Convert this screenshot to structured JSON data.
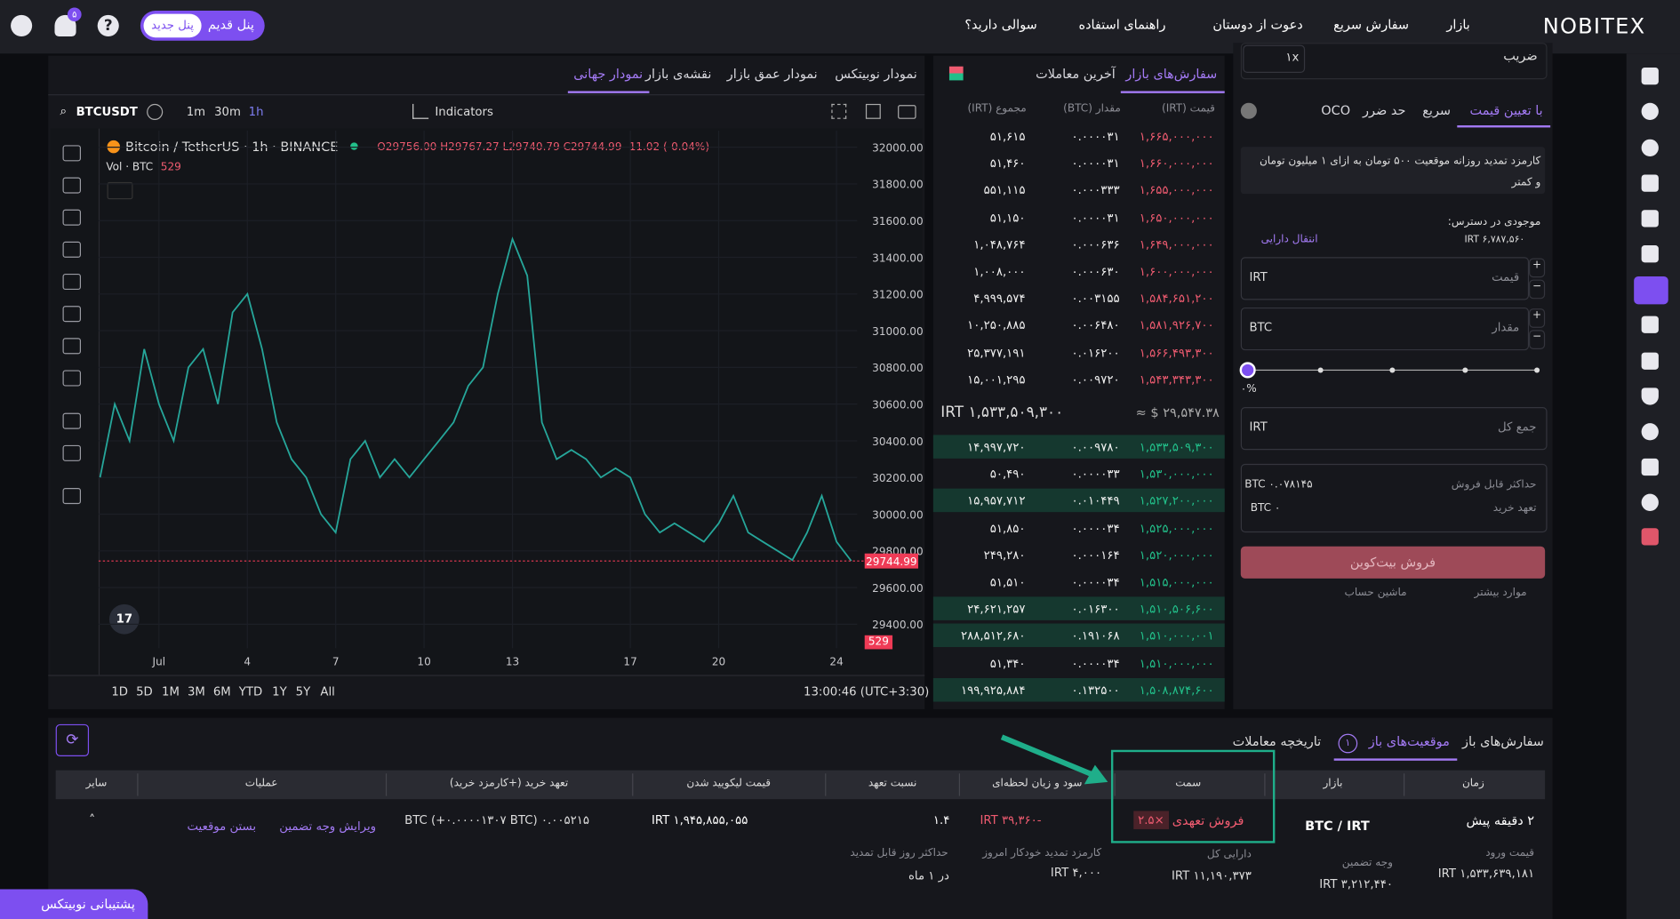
{
  "nav": {
    "logo": "NOBITEX",
    "links": [
      "بازار",
      "سفارش سریع",
      "دعوت از دوستان",
      "راهنمای استفاده",
      "سوالی دارید؟"
    ],
    "panel_old": "پنل قدیم",
    "panel_new": "پنل جدید",
    "notification_count": "۵"
  },
  "chart_tabs": [
    "نمودار جهانی",
    "نقشه‌ی بازار",
    "نمودار عمق بازار",
    "نمودار نوبیتکس"
  ],
  "toolbar": {
    "symbol": "BTCUSDT",
    "intervals": [
      "1m",
      "30m",
      "1h"
    ],
    "indicators": "Indicators"
  },
  "chart_legend": {
    "title": "Bitcoin / TetherUS · 1h · BINANCE",
    "ohlc": "O29756.00 H29767.27 L29740.79 C29744.99 -11.02 (-0.04%)",
    "volume_label": "Vol · BTC",
    "volume_value": "529"
  },
  "chart_data": {
    "type": "line",
    "x": [
      -1,
      -0.5,
      0,
      0.5,
      1,
      1.5,
      2,
      2.5,
      3,
      3.5,
      4,
      4.5,
      5,
      5.5,
      6,
      6.5,
      7,
      7.5,
      8,
      8.5,
      9,
      9.5,
      10,
      10.5,
      11,
      11.5,
      12,
      12.5,
      13,
      13.5,
      14,
      14.5,
      15,
      15.5,
      16,
      16.5,
      17,
      17.5,
      18,
      18.5,
      19,
      19.5,
      20,
      20.5,
      21,
      21.5,
      22,
      22.5,
      23,
      23.5,
      24,
      24.5
    ],
    "values": [
      30200,
      30600,
      30400,
      30900,
      30600,
      30400,
      30800,
      30900,
      30600,
      31100,
      31200,
      30900,
      30500,
      30300,
      30200,
      30000,
      29900,
      30300,
      30400,
      30200,
      30300,
      30200,
      30300,
      30400,
      30500,
      30700,
      30800,
      31200,
      31500,
      31300,
      30500,
      30300,
      30350,
      30300,
      30200,
      30250,
      30200,
      30000,
      29900,
      29950,
      29900,
      29850,
      29950,
      30100,
      29900,
      29850,
      29800,
      29750,
      29900,
      30100,
      29850,
      29745
    ],
    "color": "#26a69a",
    "xlim": [
      -1.05,
      24.7
    ],
    "ylim": [
      29270,
      32090
    ],
    "xticks": [
      {
        "value": 1,
        "label": "Jul"
      },
      4,
      7,
      10,
      13,
      17,
      20,
      24
    ],
    "yticks": [
      {
        "value": 32000,
        "label": "32000.00"
      },
      {
        "value": 31800,
        "label": "31800.00"
      },
      {
        "value": 31600,
        "label": "31600.00"
      },
      {
        "value": 31400,
        "label": "31400.00"
      },
      {
        "value": 31200,
        "label": "31200.00"
      },
      {
        "value": 31000,
        "label": "31000.00"
      },
      {
        "value": 30800,
        "label": "30800.00"
      },
      {
        "value": 30600,
        "label": "30600.00"
      },
      {
        "value": 30400,
        "label": "30400.00"
      },
      {
        "value": 30200,
        "label": "30200.00"
      },
      {
        "value": 30000,
        "label": "30000.00"
      },
      {
        "value": 29800,
        "label": "29800.00"
      },
      {
        "value": 29600,
        "label": "29600.00"
      },
      {
        "value": 29400,
        "label": "29400.00"
      }
    ],
    "last_price": 29744.99,
    "grid": true
  },
  "ranges": [
    "1D",
    "5D",
    "1M",
    "3M",
    "6M",
    "YTD",
    "1Y",
    "5Y",
    "All"
  ],
  "clock": "13:00:46 (UTC+3:30)",
  "orderbook": {
    "tabs": [
      "سفارش‌های بازار",
      "آخرین معاملات"
    ],
    "headers": [
      "قیمت (IRT)",
      "مقدار (BTC)",
      "مجموع (IRT)"
    ],
    "asks": [
      [
        "۱,۶۶۵,۰۰۰,۰۰۰",
        "۰.۰۰۰۰۳۱",
        "۵۱,۶۱۵"
      ],
      [
        "۱,۶۶۰,۰۰۰,۰۰۰",
        "۰.۰۰۰۰۳۱",
        "۵۱,۴۶۰"
      ],
      [
        "۱,۶۵۵,۰۰۰,۰۰۰",
        "۰.۰۰۰۳۳۳",
        "۵۵۱,۱۱۵"
      ],
      [
        "۱,۶۵۰,۰۰۰,۰۰۰",
        "۰.۰۰۰۰۳۱",
        "۵۱,۱۵۰"
      ],
      [
        "۱,۶۴۹,۰۰۰,۰۰۰",
        "۰.۰۰۰۶۳۶",
        "۱,۰۴۸,۷۶۴"
      ],
      [
        "۱,۶۰۰,۰۰۰,۰۰۰",
        "۰.۰۰۰۶۳۰",
        "۱,۰۰۸,۰۰۰"
      ],
      [
        "۱,۵۸۴,۶۵۱,۲۰۰",
        "۰.۰۰۳۱۵۵",
        "۴,۹۹۹,۵۷۴"
      ],
      [
        "۱,۵۸۱,۹۲۶,۷۰۰",
        "۰.۰۰۶۴۸۰",
        "۱۰,۲۵۰,۸۸۵"
      ],
      [
        "۱,۵۶۶,۴۹۳,۳۰۰",
        "۰.۰۱۶۲۰۰",
        "۲۵,۳۷۷,۱۹۱"
      ],
      [
        "۱,۵۴۳,۳۴۳,۳۰۰",
        "۰.۰۰۹۷۲۰",
        "۱۵,۰۰۱,۲۹۵"
      ]
    ],
    "mid_price": "IRT ۱,۵۳۳,۵۰۹,۳۰۰",
    "mid_usd": "≈ $ ۲۹,۵۴۷.۳۸",
    "bids": [
      [
        "۱,۵۳۳,۵۰۹,۳۰۰",
        "۰.۰۰۹۷۸۰",
        "۱۴,۹۹۷,۷۲۰"
      ],
      [
        "۱,۵۳۰,۰۰۰,۰۰۰",
        "۰.۰۰۰۰۳۳",
        "۵۰,۴۹۰"
      ],
      [
        "۱,۵۲۷,۲۰۰,۰۰۰",
        "۰.۰۱۰۴۴۹",
        "۱۵,۹۵۷,۷۱۲"
      ],
      [
        "۱,۵۲۵,۰۰۰,۰۰۰",
        "۰.۰۰۰۰۳۴",
        "۵۱,۸۵۰"
      ],
      [
        "۱,۵۲۰,۰۰۰,۰۰۰",
        "۰.۰۰۰۱۶۴",
        "۲۴۹,۲۸۰"
      ],
      [
        "۱,۵۱۵,۰۰۰,۰۰۰",
        "۰.۰۰۰۰۳۴",
        "۵۱,۵۱۰"
      ],
      [
        "۱,۵۱۰,۵۰۶,۶۰۰",
        "۰.۰۱۶۳۰۰",
        "۲۴,۶۲۱,۲۵۷"
      ],
      [
        "۱,۵۱۰,۰۰۰,۰۰۱",
        "۰.۱۹۱۰۶۸",
        "۲۸۸,۵۱۲,۶۸۰"
      ],
      [
        "۱,۵۱۰,۰۰۰,۰۰۰",
        "۰.۰۰۰۰۳۴",
        "۵۱,۳۴۰"
      ],
      [
        "۱,۵۰۸,۸۷۴,۶۰۰",
        "۰.۱۳۲۵۰۰",
        "۱۹۹,۹۲۵,۸۸۴"
      ]
    ]
  },
  "order_form": {
    "leverage_label": "ضریب",
    "leverage": "۱x",
    "tabs": [
      "با تعیین قیمت",
      "سریع",
      "حد ضرر",
      "OCO"
    ],
    "fee_note": "کارمزد تمدید روزانه موقعیت ۵۰۰ تومان به ازای ۱ میلیون تومان و کمتر",
    "balance_label": "موجودی در دسترس:",
    "balance": "۶,۷۸۷,۵۶۰ IRT",
    "transfer": "انتقال دارایی",
    "price_label": "قیمت",
    "price_unit": "IRT",
    "amount_label": "مقدار",
    "amount_unit": "BTC",
    "percent": "۰%",
    "total_label": "جمع کل",
    "total_unit": "IRT",
    "max_sell_label": "حداکثر قابل فروش",
    "max_sell": "۰.۰۷۸۱۴۵ BTC",
    "buy_commit_label": "تعهد خرید",
    "buy_commit": "۰ BTC",
    "submit": "فروش بیت‌کوین",
    "more": "موارد بیشتر",
    "calculator": "ماشین حساب"
  },
  "positions": {
    "tabs": [
      "سفارش‌های باز",
      "موقعیت‌های باز",
      "تاریخچه معاملات"
    ],
    "open_count": "۱",
    "headers": [
      "زمان",
      "بازار",
      "سمت",
      "سود و زیان لحظه‌ای",
      "نسبت تعهد",
      "قیمت لیکویید شدن",
      "تعهد خرید (+کارمزد خرید)",
      "عملیات",
      "سایر"
    ],
    "row": {
      "time": "۲ دقیقه پیش",
      "market": "BTC / IRT",
      "side": "فروش تعهدی",
      "leverage": "×۲.۵",
      "pnl": "-۳۹,۳۶۰ IRT",
      "ratio": "۱.۴",
      "liquidation": "۱,۹۴۵,۸۵۵,۰۵۵ IRT",
      "commitment": "۰.۰۰۵۲۱۵ BTC (+۰.۰۰۰۰۱۳۰۷ BTC)",
      "edit": "ویرایش وجه تضمین",
      "close": "بستن موقعیت"
    },
    "details": [
      {
        "label": "قیمت ورود",
        "value": "۱,۵۳۳,۶۳۹,۱۸۱ IRT"
      },
      {
        "label": "وجه تضمین",
        "value": "۳,۲۱۲,۴۴۰ IRT"
      },
      {
        "label": "دارایی کل",
        "value": "۱۱,۱۹۰,۳۷۳ IRT"
      },
      {
        "label": "کارمزد تمدید خودکار امروز",
        "value": "۴,۰۰۰ IRT"
      },
      {
        "label": "حداکثر روز قابل تمدید",
        "value": "در ۱ ماه"
      }
    ]
  },
  "support": "پشتیبانی نوبیتکس"
}
